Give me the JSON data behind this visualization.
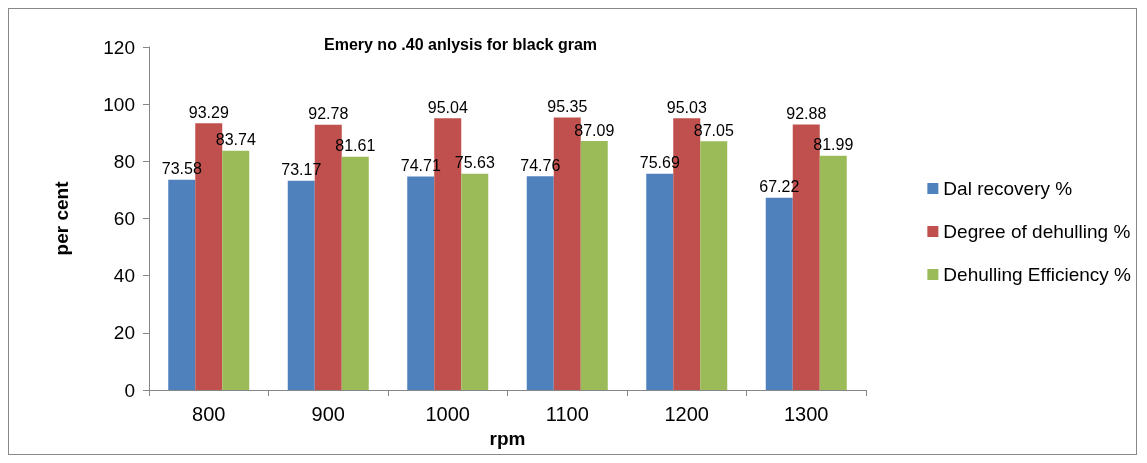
{
  "chart_data": {
    "type": "bar",
    "title": "Emery no .40 anlysis for black gram",
    "xlabel": "rpm",
    "ylabel": "per cent",
    "categories": [
      "800",
      "900",
      "1000",
      "1100",
      "1200",
      "1300"
    ],
    "series": [
      {
        "name": "Dal recovery %",
        "color": "#4f81bd",
        "values": [
          73.58,
          73.17,
          74.71,
          74.76,
          75.69,
          67.22
        ]
      },
      {
        "name": "Degree of dehulling %",
        "color": "#c0504d",
        "values": [
          93.29,
          92.78,
          95.04,
          95.35,
          95.03,
          92.88
        ]
      },
      {
        "name": "Dehulling Efficiency %",
        "color": "#9bbb59",
        "values": [
          83.74,
          81.61,
          75.63,
          87.09,
          87.05,
          81.99
        ]
      }
    ],
    "ylim": [
      0,
      120
    ],
    "yticks": [
      0,
      20,
      40,
      60,
      80,
      100,
      120
    ],
    "grid": false,
    "legend": "right",
    "data_labels": true
  }
}
